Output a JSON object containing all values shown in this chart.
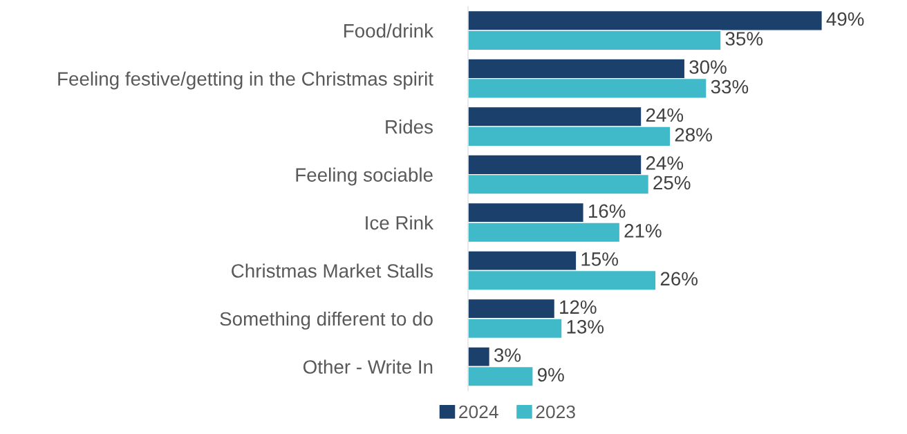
{
  "chart_data": {
    "type": "bar",
    "orientation": "horizontal",
    "categories": [
      "Food/drink",
      "Feeling festive/getting in the Christmas spirit",
      "Rides",
      "Feeling sociable",
      "Ice Rink",
      "Christmas Market Stalls",
      "Something different to do",
      "Other - Write In"
    ],
    "series": [
      {
        "name": "2024",
        "color": "#1b406c",
        "values": [
          49,
          30,
          24,
          24,
          16,
          15,
          12,
          3
        ],
        "value_labels": [
          "49%",
          "30%",
          "24%",
          "24%",
          "16%",
          "15%",
          "12%",
          "3%"
        ]
      },
      {
        "name": "2023",
        "color": "#40bac8",
        "values": [
          35,
          33,
          28,
          25,
          21,
          26,
          13,
          9
        ],
        "value_labels": [
          "35%",
          "33%",
          "28%",
          "25%",
          "21%",
          "26%",
          "13%",
          "9%"
        ]
      }
    ],
    "tick_labels": "y",
    "grid": false,
    "legend": "bottom"
  }
}
